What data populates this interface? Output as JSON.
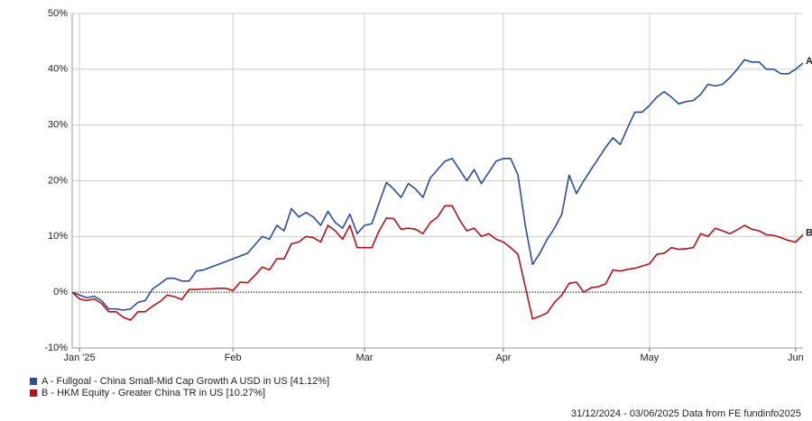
{
  "chart_data": {
    "type": "line",
    "categories": [
      null,
      "Jan '25",
      null,
      null,
      null,
      null,
      null,
      null,
      null,
      null,
      null,
      null,
      null,
      null,
      null,
      null,
      null,
      null,
      null,
      null,
      null,
      null,
      "Feb",
      null,
      null,
      null,
      null,
      null,
      null,
      null,
      null,
      null,
      null,
      null,
      null,
      null,
      null,
      null,
      null,
      null,
      "Mar",
      null,
      null,
      null,
      null,
      null,
      null,
      null,
      null,
      null,
      null,
      null,
      null,
      null,
      null,
      null,
      null,
      null,
      null,
      "Apr",
      null,
      null,
      null,
      null,
      null,
      null,
      null,
      null,
      null,
      null,
      null,
      null,
      null,
      null,
      null,
      null,
      null,
      null,
      null,
      "May",
      null,
      null,
      null,
      null,
      null,
      null,
      null,
      null,
      null,
      null,
      null,
      null,
      null,
      null,
      null,
      null,
      null,
      null,
      null,
      "Jun",
      null
    ],
    "series": [
      {
        "name": "A - Fullgoal - China Small-Mid Cap Growth A USD in US [41.12%]",
        "label": "A",
        "color": "#2a4d9b",
        "values": [
          0,
          -0.5,
          -1,
          -0.7,
          -1.5,
          -3,
          -3,
          -3.2,
          -3,
          -1.8,
          -1.5,
          0.6,
          1.5,
          2.5,
          2.5,
          2,
          2,
          3.8,
          4,
          4.5,
          5,
          5.5,
          6,
          6.5,
          7,
          8.5,
          10,
          9.5,
          12,
          11,
          15,
          13.5,
          14.3,
          13.5,
          12,
          14.5,
          12.5,
          11.5,
          14,
          10.5,
          12,
          12.3,
          16,
          19.7,
          18.5,
          17,
          19.5,
          18.5,
          17,
          20.5,
          22,
          23.5,
          24,
          22,
          20,
          22,
          19.5,
          21.5,
          23.5,
          24,
          24,
          21,
          12,
          5,
          7,
          9.5,
          11.5,
          14,
          21,
          17.7,
          20,
          22,
          24,
          26,
          27.7,
          26.5,
          29.5,
          32.3,
          32.3,
          33.5,
          35,
          36,
          35,
          33.8,
          34.2,
          34.4,
          35.5,
          37.3,
          37,
          37.3,
          38.5,
          40,
          41.7,
          41.3,
          41.3,
          40,
          40,
          39.2,
          39.2,
          40,
          41.1
        ]
      },
      {
        "name": "B - HKM Equity - Greater China TR in US [10.27%]",
        "label": "B",
        "color": "#b3121b",
        "values": [
          0,
          -1.2,
          -1.5,
          -1.2,
          -2,
          -3.5,
          -3.5,
          -4.5,
          -5,
          -3.5,
          -3.5,
          -2.5,
          -1.7,
          -0.5,
          -0.8,
          -1.3,
          0.5,
          0.5,
          0.6,
          0.6,
          0.7,
          0.7,
          0.3,
          1.8,
          1.7,
          3,
          4.5,
          4,
          6,
          6,
          8.7,
          9,
          10,
          9.8,
          9,
          12,
          11,
          9.5,
          12,
          8,
          8,
          8,
          11,
          13.3,
          13.2,
          11.3,
          11.5,
          11.3,
          10.5,
          12.5,
          13.5,
          15.5,
          15.5,
          13,
          11,
          11.5,
          10,
          10.5,
          9.5,
          9,
          8,
          6.8,
          1,
          -4.8,
          -4.3,
          -3.7,
          -1.8,
          -0.5,
          1.6,
          1.8,
          0,
          0.8,
          1,
          1.5,
          4,
          3.8,
          4.1,
          4.3,
          4.7,
          5.1,
          6.8,
          7,
          8,
          7.7,
          7.8,
          8,
          10.5,
          10,
          11.5,
          11,
          10.5,
          11.2,
          12,
          11.3,
          11,
          10.3,
          10.2,
          9.8,
          9.3,
          9,
          10.3
        ]
      }
    ],
    "ylim": [
      -10,
      50
    ],
    "yticks": [
      {
        "value": -10,
        "label": "-10%"
      },
      {
        "value": 0,
        "label": "0%"
      },
      {
        "value": 10,
        "label": "10%"
      },
      {
        "value": 20,
        "label": "20%"
      },
      {
        "value": 30,
        "label": "30%"
      },
      {
        "value": 40,
        "label": "40%"
      },
      {
        "value": 50,
        "label": "50%"
      }
    ],
    "grid": true,
    "zero_line": true,
    "footer": "31/12/2024 - 03/06/2025 Data from FE fundinfo2025"
  }
}
